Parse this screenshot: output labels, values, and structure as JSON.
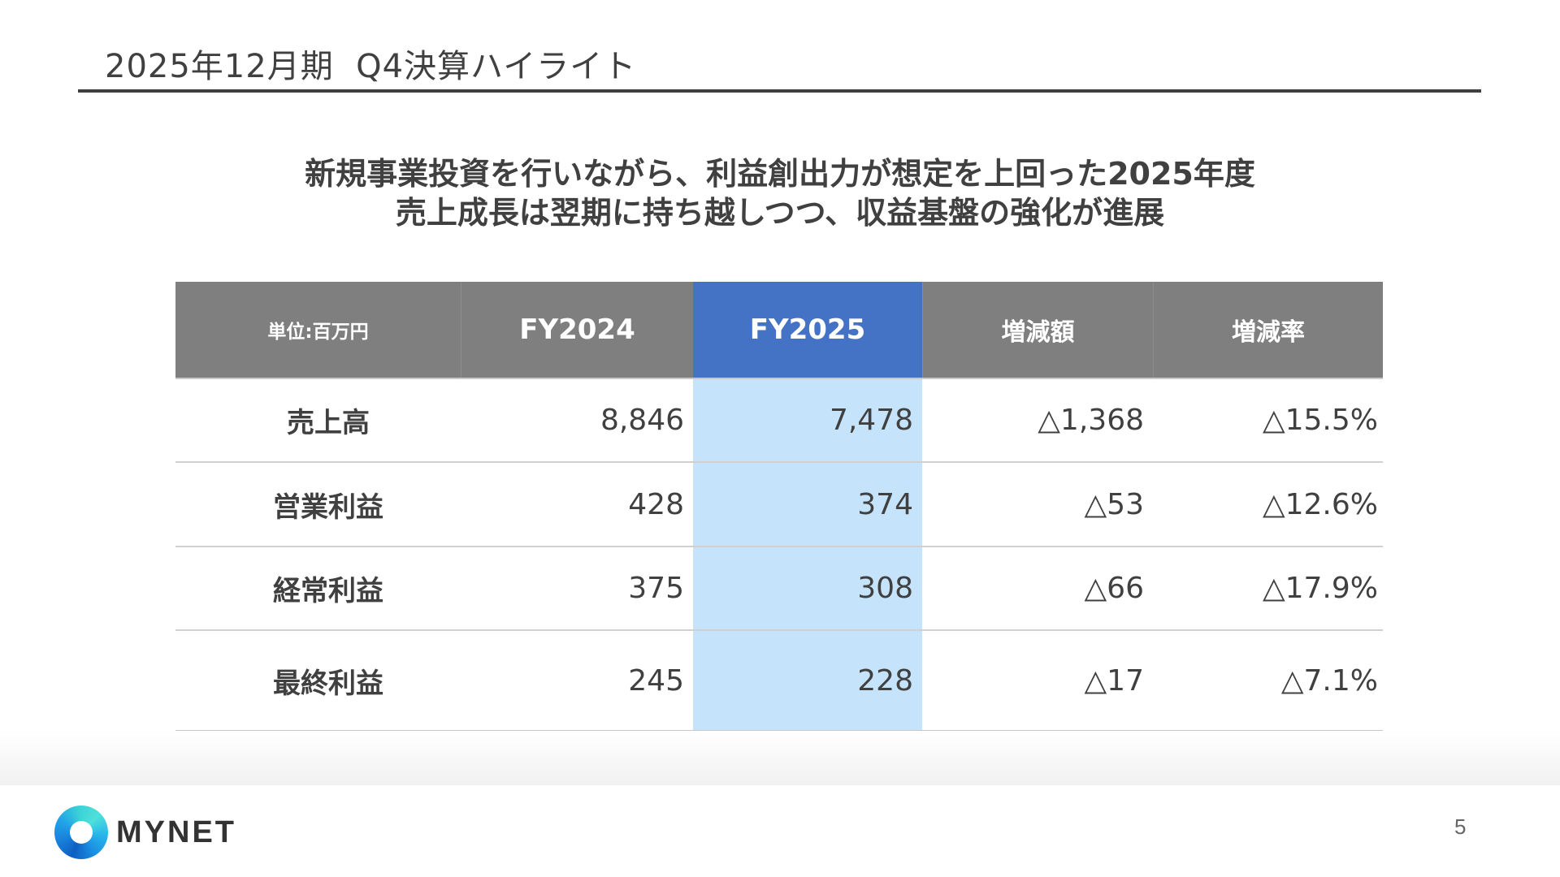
{
  "header": {
    "title": "2025年12月期  Q4決算ハイライト"
  },
  "summary": {
    "line1": "新規事業投資を行いながら、利益創出力が想定を上回った2025年度",
    "line2": "売上成長は翌期に持ち越しつつ、収益基盤の強化が進展"
  },
  "table": {
    "columns": [
      "単位:百万円",
      "FY2024",
      "FY2025",
      "増減額",
      "増減率"
    ],
    "highlight_column": "FY2025",
    "rows": [
      {
        "label": "売上高",
        "fy2024": "8,846",
        "fy2025": "7,478",
        "change": "△1,368",
        "rate": "△15.5%"
      },
      {
        "label": "営業利益",
        "fy2024": "428",
        "fy2025": "374",
        "change": "△53",
        "rate": "△12.6%"
      },
      {
        "label": "経常利益",
        "fy2024": "375",
        "fy2025": "308",
        "change": "△66",
        "rate": "△17.9%"
      },
      {
        "label": "最終利益",
        "fy2024": "245",
        "fy2025": "228",
        "change": "△17",
        "rate": "△7.1%"
      }
    ]
  },
  "colors": {
    "header_gray": "#7f7f7f",
    "highlight_header": "#4472c4",
    "highlight_body": "#c5e3fb",
    "text": "#404040"
  },
  "footer": {
    "logo_text": "MYNET",
    "logo_icon": "ring-logo-icon",
    "page_number": "5"
  }
}
